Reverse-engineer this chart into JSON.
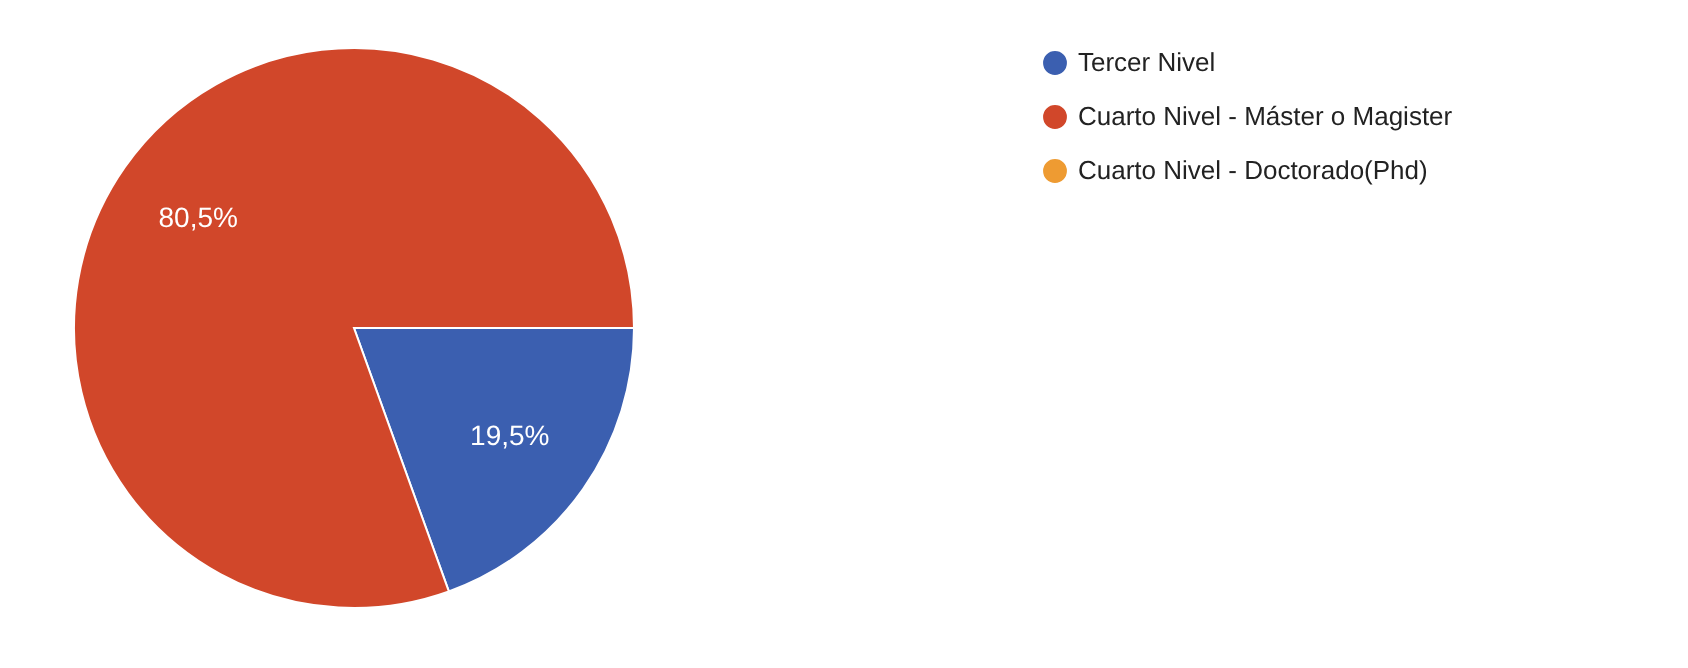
{
  "chart_data": {
    "type": "pie",
    "categories": [
      "Tercer Nivel",
      "Cuarto Nivel - Máster o Magister",
      "Cuarto Nivel - Doctorado(Phd)"
    ],
    "values": [
      19.5,
      80.5,
      0
    ],
    "colors": [
      "#3b5fb0",
      "#d1472a",
      "#ee9b32"
    ],
    "value_labels": [
      "19,5%",
      "80,5%",
      null
    ],
    "legend": "right"
  }
}
